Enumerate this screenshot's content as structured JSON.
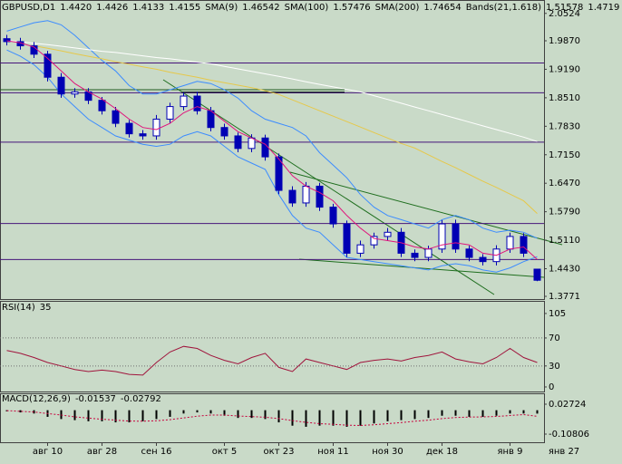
{
  "chart_data": [
    {
      "type": "candlestick",
      "symbol": "GBPUSD,D1",
      "last_bar_labels": [
        "1.4420",
        "1.4426",
        "1.4133",
        "1.4155"
      ],
      "categories": [
        null,
        null,
        null,
        "авг 10",
        null,
        null,
        null,
        "авг 28",
        null,
        null,
        null,
        "сен 16",
        null,
        null,
        null,
        null,
        "окт 5",
        null,
        null,
        null,
        "окт 23",
        null,
        null,
        null,
        "ноя 11",
        null,
        null,
        null,
        "ноя 30",
        null,
        null,
        null,
        "дек 18",
        null,
        null,
        null,
        null,
        "янв 9",
        null,
        null
      ],
      "extra_x_label": "янв 27",
      "open": [
        1.992,
        1.985,
        1.975,
        1.955,
        1.9,
        1.86,
        1.865,
        1.845,
        1.82,
        1.79,
        1.765,
        1.76,
        1.8,
        1.83,
        1.855,
        1.82,
        1.78,
        1.76,
        1.73,
        1.755,
        1.71,
        1.63,
        1.6,
        1.64,
        1.59,
        1.55,
        1.48,
        1.5,
        1.52,
        1.53,
        1.48,
        1.47,
        1.49,
        1.55,
        1.49,
        1.47,
        1.46,
        1.49,
        1.52,
        1.442
      ],
      "high": [
        2.001,
        1.994,
        1.984,
        1.963,
        1.91,
        1.874,
        1.874,
        1.853,
        1.829,
        1.798,
        1.774,
        1.81,
        1.839,
        1.864,
        1.866,
        1.829,
        1.789,
        1.768,
        1.764,
        1.763,
        1.718,
        1.64,
        1.65,
        1.648,
        1.598,
        1.558,
        1.51,
        1.529,
        1.54,
        1.54,
        1.489,
        1.498,
        1.559,
        1.56,
        1.498,
        1.478,
        1.499,
        1.529,
        1.528,
        1.4426
      ],
      "low": [
        1.976,
        1.966,
        1.946,
        1.89,
        1.851,
        1.851,
        1.836,
        1.811,
        1.781,
        1.756,
        1.751,
        1.751,
        1.791,
        1.821,
        1.811,
        1.771,
        1.751,
        1.721,
        1.721,
        1.701,
        1.621,
        1.591,
        1.591,
        1.581,
        1.541,
        1.471,
        1.471,
        1.491,
        1.511,
        1.471,
        1.461,
        1.461,
        1.481,
        1.481,
        1.461,
        1.451,
        1.451,
        1.481,
        1.471,
        1.4133
      ],
      "close": [
        1.985,
        1.975,
        1.955,
        1.9,
        1.86,
        1.865,
        1.845,
        1.82,
        1.79,
        1.765,
        1.76,
        1.8,
        1.83,
        1.855,
        1.82,
        1.78,
        1.76,
        1.73,
        1.755,
        1.71,
        1.63,
        1.6,
        1.64,
        1.59,
        1.55,
        1.48,
        1.5,
        1.52,
        1.53,
        1.48,
        1.47,
        1.49,
        1.55,
        1.49,
        1.47,
        1.46,
        1.49,
        1.52,
        1.48,
        1.4155
      ],
      "up_color": "#ffffff",
      "down_color": "#0000b4",
      "wick_color": "#0000b4",
      "series": [
        {
          "name": "SMA(9)",
          "color": "#e0147c",
          "values": [
            1.987,
            1.982,
            1.972,
            1.945,
            1.915,
            1.885,
            1.865,
            1.848,
            1.825,
            1.8,
            1.78,
            1.775,
            1.79,
            1.815,
            1.83,
            1.82,
            1.795,
            1.77,
            1.755,
            1.74,
            1.705,
            1.665,
            1.64,
            1.625,
            1.605,
            1.57,
            1.54,
            1.515,
            1.51,
            1.505,
            1.495,
            1.49,
            1.5,
            1.505,
            1.5,
            1.48,
            1.475,
            1.49,
            1.495,
            1.46542
          ]
        },
        {
          "name": "SMA(100)",
          "color": "#e6c84a",
          "values": [
            null,
            null,
            1.975,
            1.969,
            1.963,
            1.956,
            1.95,
            1.944,
            1.937,
            1.931,
            1.925,
            1.919,
            1.912,
            1.906,
            1.9,
            1.893,
            1.887,
            1.881,
            1.875,
            1.868,
            1.859,
            1.846,
            1.833,
            1.82,
            1.807,
            1.794,
            1.781,
            1.768,
            1.755,
            1.742,
            1.731,
            1.715,
            1.699,
            1.684,
            1.668,
            1.652,
            1.637,
            1.621,
            1.605,
            1.57476
          ]
        },
        {
          "name": "SMA(200)",
          "color": "#ffffff",
          "values": [
            1.988,
            1.985,
            1.981,
            1.978,
            1.974,
            1.97,
            1.966,
            1.962,
            1.959,
            1.955,
            1.951,
            1.947,
            1.944,
            1.94,
            1.936,
            1.932,
            1.926,
            1.92,
            1.914,
            1.908,
            1.902,
            1.896,
            1.889,
            1.883,
            1.877,
            1.871,
            1.865,
            1.856,
            1.847,
            1.838,
            1.829,
            1.82,
            1.811,
            1.802,
            1.793,
            1.784,
            1.775,
            1.766,
            1.757,
            1.74654
          ]
        }
      ],
      "bands": {
        "name": "Bands(21,1.618)",
        "color": "#3c8cff",
        "upper": [
          2.01,
          2.02,
          2.03,
          2.035,
          2.025,
          2.0,
          1.97,
          1.94,
          1.915,
          1.88,
          1.86,
          1.86,
          1.87,
          1.88,
          1.89,
          1.885,
          1.87,
          1.85,
          1.82,
          1.8,
          1.79,
          1.78,
          1.76,
          1.72,
          1.69,
          1.66,
          1.62,
          1.59,
          1.57,
          1.56,
          1.55,
          1.54,
          1.56,
          1.57,
          1.56,
          1.54,
          1.53,
          1.535,
          1.53,
          1.51578
        ],
        "lower": [
          1.965,
          1.95,
          1.93,
          1.9,
          1.86,
          1.83,
          1.8,
          1.78,
          1.76,
          1.75,
          1.74,
          1.735,
          1.74,
          1.76,
          1.77,
          1.76,
          1.735,
          1.71,
          1.695,
          1.68,
          1.62,
          1.57,
          1.54,
          1.53,
          1.5,
          1.47,
          1.465,
          1.46,
          1.455,
          1.45,
          1.445,
          1.44,
          1.45,
          1.455,
          1.45,
          1.44,
          1.435,
          1.445,
          1.46,
          1.4719
        ]
      },
      "levels": [
        1.934,
        1.863,
        1.745,
        1.551,
        1.465
      ],
      "level_color": "#46147a",
      "ylim": [
        1.3706,
        2.08
      ],
      "yticks": [
        2.0524,
        {
          "value": 1.987,
          "label": "1.9870"
        },
        {
          "value": 1.919,
          "label": "1.9190"
        },
        {
          "value": 1.851,
          "label": "1.8510"
        },
        {
          "value": 1.783,
          "label": "1.7830"
        },
        {
          "value": 1.715,
          "label": "1.7150"
        },
        {
          "value": 1.647,
          "label": "1.6470"
        },
        {
          "value": 1.579,
          "label": "1.5790"
        },
        {
          "value": 1.511,
          "label": "1.5110"
        },
        {
          "value": 1.443,
          "label": "1.4430"
        },
        1.3771
      ]
    },
    {
      "type": "line",
      "title": "RSI(14)",
      "series": [
        {
          "name": "RSI",
          "color": "#a0143c",
          "values": [
            52,
            48,
            42,
            35,
            30,
            25,
            22,
            24,
            22,
            18,
            17,
            35,
            50,
            58,
            55,
            45,
            38,
            33,
            42,
            48,
            28,
            22,
            40,
            35,
            30,
            25,
            35,
            38,
            40,
            37,
            42,
            45,
            50,
            40,
            36,
            33,
            42,
            55,
            42,
            35
          ]
        }
      ],
      "ylim": [
        -6.5,
        123
      ],
      "yticks": [
        105,
        70,
        30,
        0
      ],
      "levels": [
        70,
        30
      ]
    },
    {
      "type": "macd",
      "title": "MACD(12,26,9)",
      "series": [
        {
          "name": "main",
          "color": "#000000",
          "values": [
            -0.005,
            -0.01,
            -0.015,
            -0.03,
            -0.04,
            -0.045,
            -0.05,
            -0.05,
            -0.055,
            -0.055,
            -0.05,
            -0.04,
            -0.03,
            -0.015,
            -0.01,
            -0.015,
            -0.025,
            -0.035,
            -0.035,
            -0.04,
            -0.055,
            -0.07,
            -0.075,
            -0.07,
            -0.07,
            -0.075,
            -0.07,
            -0.06,
            -0.05,
            -0.045,
            -0.04,
            -0.035,
            -0.025,
            -0.025,
            -0.03,
            -0.03,
            -0.025,
            -0.015,
            -0.015,
            -0.01537
          ]
        },
        {
          "name": "signal",
          "color": "#c8003c",
          "values": [
            -0.002,
            -0.005,
            -0.008,
            -0.015,
            -0.022,
            -0.03,
            -0.036,
            -0.041,
            -0.045,
            -0.049,
            -0.05,
            -0.048,
            -0.043,
            -0.035,
            -0.027,
            -0.022,
            -0.022,
            -0.026,
            -0.029,
            -0.032,
            -0.038,
            -0.047,
            -0.055,
            -0.061,
            -0.064,
            -0.068,
            -0.069,
            -0.066,
            -0.061,
            -0.056,
            -0.05,
            -0.045,
            -0.038,
            -0.033,
            -0.031,
            -0.03,
            -0.028,
            -0.024,
            -0.02,
            -0.02792
          ]
        }
      ],
      "ylim": [
        -0.145,
        0.0764
      ],
      "yticks": [
        0.02724,
        -0.10806
      ]
    }
  ]
}
